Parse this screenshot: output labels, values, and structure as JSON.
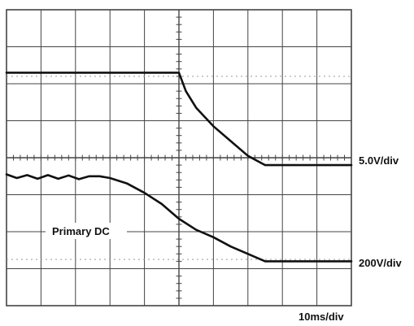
{
  "chart_data": {
    "type": "line",
    "grid": true,
    "x_divisions": 10,
    "y_divisions": 8,
    "series": [
      {
        "x": [
          0,
          1,
          2,
          3,
          4,
          5,
          5.2,
          5.5,
          6,
          6.5,
          7,
          7.5,
          8,
          9,
          10
        ],
        "values": [
          6.3,
          6.3,
          6.3,
          6.3,
          6.3,
          6.3,
          5.8,
          5.35,
          4.85,
          4.45,
          4.05,
          3.8,
          3.8,
          3.8,
          3.8
        ]
      },
      {
        "name": "Primary DC",
        "x": [
          0,
          0.3,
          0.6,
          0.9,
          1.2,
          1.5,
          1.8,
          2.1,
          2.4,
          2.7,
          3.0,
          3.5,
          4.0,
          4.5,
          5.0,
          5.5,
          6.0,
          6.5,
          7.0,
          7.5,
          8.0,
          9.0,
          10.0
        ],
        "values": [
          3.55,
          3.45,
          3.53,
          3.43,
          3.53,
          3.43,
          3.52,
          3.42,
          3.5,
          3.5,
          3.45,
          3.3,
          3.05,
          2.75,
          2.35,
          2.05,
          1.85,
          1.6,
          1.4,
          1.2,
          1.2,
          1.2,
          1.2
        ]
      }
    ]
  },
  "labels": {
    "trace1_scale": "5.0V/div",
    "trace2_scale": "200V/div",
    "time_scale": "10ms/div",
    "trace2_name": "Primary DC"
  },
  "colors": {
    "grid": "#444444",
    "dotted": "#9a9a9a",
    "trace": "#111111"
  }
}
